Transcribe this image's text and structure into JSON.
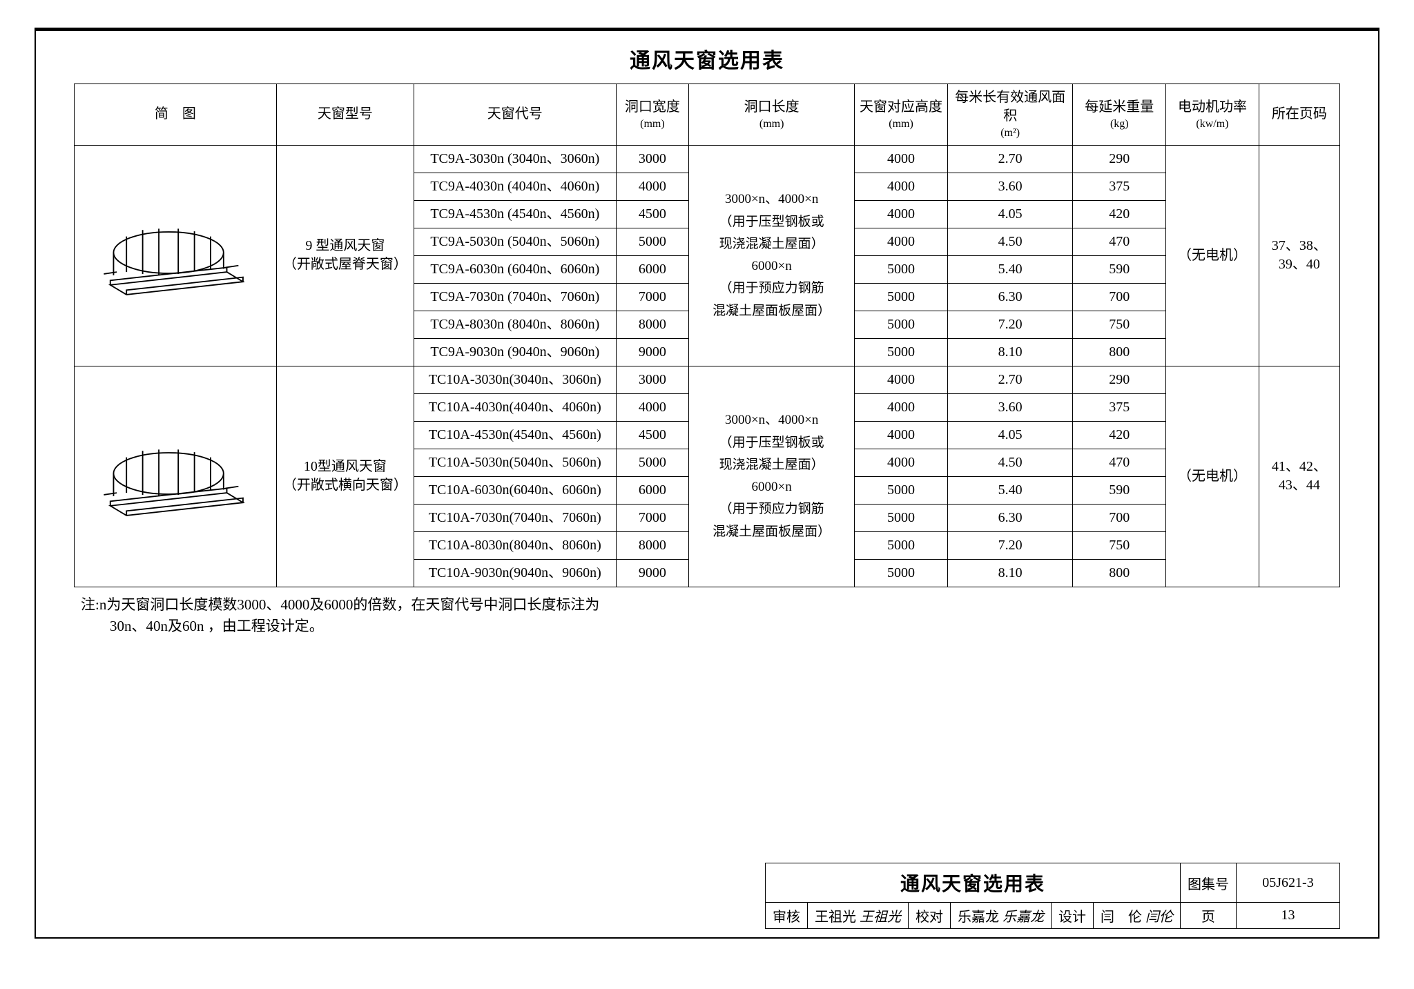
{
  "title": "通风天窗选用表",
  "headers": {
    "diagram": "简　图",
    "model": "天窗型号",
    "code": "天窗代号",
    "width": "洞口宽度",
    "width_unit": "(mm)",
    "length": "洞口长度",
    "length_unit": "(mm)",
    "height": "天窗对应高度",
    "height_unit": "(mm)",
    "venta": "每米长有效通风面积",
    "venta_unit": "(m²)",
    "weight": "每延米重量",
    "weight_unit": "(kg)",
    "power": "电动机功率",
    "power_unit": "(kw/m)",
    "page": "所在页码"
  },
  "length_note_l1": "3000×n、4000×n",
  "length_note_l2": "（用于压型钢板或",
  "length_note_l3": "现浇混凝土屋面）",
  "length_note_l4": "6000×n",
  "length_note_l5": "（用于预应力钢筋",
  "length_note_l6": "混凝土屋面板屋面）",
  "group1": {
    "model_l1": "9 型通风天窗",
    "model_l2": "（开敞式屋脊天窗）",
    "power": "（无电机）",
    "page_l1": "37、38、",
    "page_l2": "39、40",
    "rows": [
      {
        "code": "TC9A-3030n (3040n、3060n)",
        "width": "3000",
        "height": "4000",
        "venta": "2.70",
        "weight": "290"
      },
      {
        "code": "TC9A-4030n (4040n、4060n)",
        "width": "4000",
        "height": "4000",
        "venta": "3.60",
        "weight": "375"
      },
      {
        "code": "TC9A-4530n (4540n、4560n)",
        "width": "4500",
        "height": "4000",
        "venta": "4.05",
        "weight": "420"
      },
      {
        "code": "TC9A-5030n (5040n、5060n)",
        "width": "5000",
        "height": "4000",
        "venta": "4.50",
        "weight": "470"
      },
      {
        "code": "TC9A-6030n (6040n、6060n)",
        "width": "6000",
        "height": "5000",
        "venta": "5.40",
        "weight": "590"
      },
      {
        "code": "TC9A-7030n (7040n、7060n)",
        "width": "7000",
        "height": "5000",
        "venta": "6.30",
        "weight": "700"
      },
      {
        "code": "TC9A-8030n (8040n、8060n)",
        "width": "8000",
        "height": "5000",
        "venta": "7.20",
        "weight": "750"
      },
      {
        "code": "TC9A-9030n (9040n、9060n)",
        "width": "9000",
        "height": "5000",
        "venta": "8.10",
        "weight": "800"
      }
    ]
  },
  "group2": {
    "model_l1": "10型通风天窗",
    "model_l2": "（开敞式横向天窗）",
    "power": "（无电机）",
    "page_l1": "41、42、",
    "page_l2": "43、44",
    "rows": [
      {
        "code": "TC10A-3030n(3040n、3060n)",
        "width": "3000",
        "height": "4000",
        "venta": "2.70",
        "weight": "290"
      },
      {
        "code": "TC10A-4030n(4040n、4060n)",
        "width": "4000",
        "height": "4000",
        "venta": "3.60",
        "weight": "375"
      },
      {
        "code": "TC10A-4530n(4540n、4560n)",
        "width": "4500",
        "height": "4000",
        "venta": "4.05",
        "weight": "420"
      },
      {
        "code": "TC10A-5030n(5040n、5060n)",
        "width": "5000",
        "height": "4000",
        "venta": "4.50",
        "weight": "470"
      },
      {
        "code": "TC10A-6030n(6040n、6060n)",
        "width": "6000",
        "height": "5000",
        "venta": "5.40",
        "weight": "590"
      },
      {
        "code": "TC10A-7030n(7040n、7060n)",
        "width": "7000",
        "height": "5000",
        "venta": "6.30",
        "weight": "700"
      },
      {
        "code": "TC10A-8030n(8040n、8060n)",
        "width": "8000",
        "height": "5000",
        "venta": "7.20",
        "weight": "750"
      },
      {
        "code": "TC10A-9030n(9040n、9060n)",
        "width": "9000",
        "height": "5000",
        "venta": "8.10",
        "weight": "800"
      }
    ]
  },
  "note_l1": "注:n为天窗洞口长度模数3000、4000及6000的倍数，在天窗代号中洞口长度标注为",
  "note_l2": "30n、40n及60n ，由工程设计定。",
  "footer": {
    "block_title": "通风天窗选用表",
    "atlas_label": "图集号",
    "atlas_no": "05J621-3",
    "review_label": "审核",
    "review_name": "王祖光",
    "review_sig": "王祖光",
    "proof_label": "校对",
    "proof_name": "乐嘉龙",
    "proof_sig": "乐嘉龙",
    "design_label": "设计",
    "design_name": "闫　伦",
    "design_sig": "闫伦",
    "page_label": "页",
    "page_no": "13"
  }
}
